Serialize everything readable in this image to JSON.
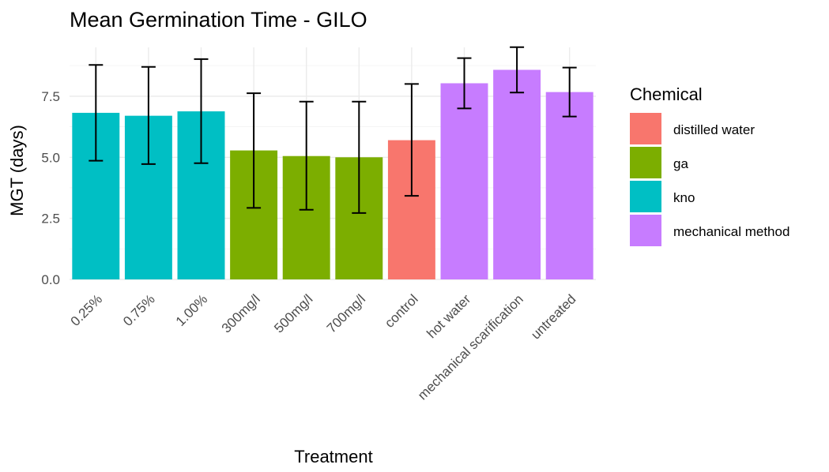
{
  "chart_data": {
    "type": "bar",
    "title": "Mean Germination Time - GILO",
    "xlabel": "Treatment",
    "ylabel": "MGT (days)",
    "ylim": [
      0,
      9.5
    ],
    "yticks": [
      0,
      2.5,
      5,
      7.5
    ],
    "ytick_labels": [
      "0.0",
      "2.5",
      "5.0",
      "7.5"
    ],
    "grid": true,
    "legend_position": "right",
    "legend": {
      "title": "Chemical",
      "entries": [
        {
          "name": "distilled water",
          "color": "#F8766D"
        },
        {
          "name": "ga",
          "color": "#7CAE00"
        },
        {
          "name": "kno",
          "color": "#00BFC4"
        },
        {
          "name": "mechanical method",
          "color": "#C77CFF"
        }
      ]
    },
    "categories": [
      "0.25%",
      "0.75%",
      "1.00%",
      "300mg/l",
      "500mg/l",
      "700mg/l",
      "control",
      "hot water",
      "mechanical scarification",
      "untreated"
    ],
    "values": [
      6.82,
      6.7,
      6.88,
      5.28,
      5.05,
      5.0,
      5.7,
      8.03,
      8.58,
      7.67
    ],
    "error_low": [
      4.86,
      4.72,
      4.76,
      2.93,
      2.85,
      2.72,
      3.42,
      7.0,
      7.65,
      6.67
    ],
    "error_high": [
      8.78,
      8.7,
      9.02,
      7.62,
      7.28,
      7.28,
      8.0,
      9.06,
      9.51,
      8.67
    ],
    "groups": [
      "kno",
      "kno",
      "kno",
      "ga",
      "ga",
      "ga",
      "distilled water",
      "mechanical method",
      "mechanical method",
      "mechanical method"
    ]
  }
}
